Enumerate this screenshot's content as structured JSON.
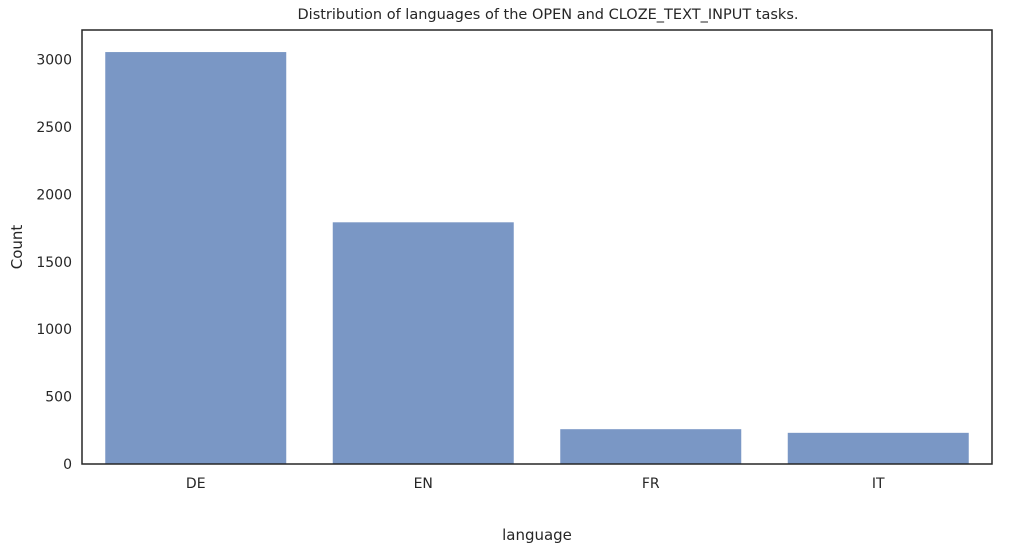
{
  "chart_data": {
    "type": "bar",
    "title": "Distribution of languages of the OPEN and CLOZE_TEXT_INPUT tasks.",
    "xlabel": "language",
    "ylabel": "Count",
    "categories": [
      "DE",
      "EN",
      "FR",
      "IT"
    ],
    "values": [
      3060,
      1797,
      262,
      235
    ],
    "ylim": [
      0,
      3220
    ],
    "yticks": [
      0,
      500,
      1000,
      1500,
      2000,
      2500,
      3000
    ],
    "grid": false,
    "legend": "none",
    "bar_color": "#7a97c5",
    "bar_edge_color": "#ffffff",
    "axis_color": "#262626"
  }
}
